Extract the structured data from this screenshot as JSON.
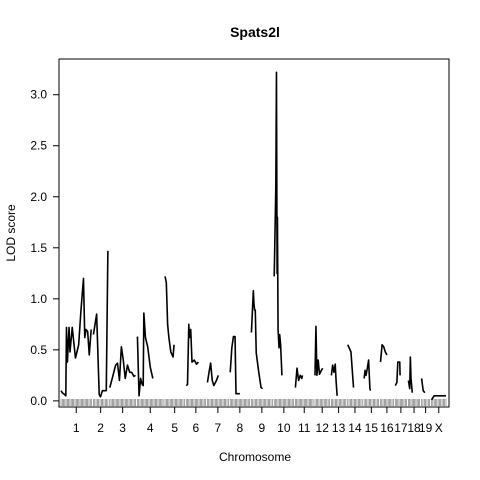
{
  "chart_data": {
    "type": "line",
    "title": "Spats2l",
    "xlabel": "Chromosome",
    "ylabel": "LOD score",
    "ylim": [
      -0.06,
      3.35
    ],
    "y_ticks": [
      0.0,
      0.5,
      1.0,
      1.5,
      2.0,
      2.5,
      3.0
    ],
    "y_tick_labels": [
      "0.0",
      "0.5",
      "1.0",
      "1.5",
      "2.0",
      "2.5",
      "3.0"
    ],
    "x_unit": "cM",
    "gap_cM": 6,
    "grid": false,
    "legend": "none",
    "line_color": "#000000",
    "chromosomes": [
      {
        "name": "1",
        "label": "1",
        "length": 95,
        "points": [
          [
            0,
            0.1
          ],
          [
            4,
            0.08
          ],
          [
            8,
            0.07
          ],
          [
            12,
            0.06
          ],
          [
            15,
            0.05
          ],
          [
            17,
            0.72
          ],
          [
            20,
            0.38
          ],
          [
            25,
            0.72
          ],
          [
            28,
            0.48
          ],
          [
            35,
            0.72
          ],
          [
            45,
            0.42
          ],
          [
            55,
            0.55
          ],
          [
            62,
            0.88
          ],
          [
            70,
            1.2
          ],
          [
            74,
            0.62
          ],
          [
            78,
            0.7
          ],
          [
            83,
            0.68
          ],
          [
            88,
            0.45
          ],
          [
            94,
            0.7
          ]
        ]
      },
      {
        "name": "2",
        "label": "2",
        "length": 45,
        "points": [
          [
            0,
            0.65
          ],
          [
            10,
            0.85
          ],
          [
            18,
            0.06
          ],
          [
            22,
            0.04
          ],
          [
            28,
            0.1
          ],
          [
            36,
            0.1
          ],
          [
            40,
            0.1
          ],
          [
            45,
            1.47
          ]
        ]
      },
      {
        "name": "3",
        "label": "3",
        "length": 80,
        "points": [
          [
            0,
            0.13
          ],
          [
            10,
            0.25
          ],
          [
            18,
            0.35
          ],
          [
            24,
            0.37
          ],
          [
            30,
            0.2
          ],
          [
            36,
            0.53
          ],
          [
            42,
            0.4
          ],
          [
            48,
            0.22
          ],
          [
            55,
            0.35
          ],
          [
            62,
            0.28
          ],
          [
            68,
            0.28
          ],
          [
            75,
            0.24
          ],
          [
            80,
            0.25
          ]
        ]
      },
      {
        "name": "4",
        "label": "4",
        "length": 80,
        "points": [
          [
            0,
            0.63
          ],
          [
            5,
            0.05
          ],
          [
            10,
            0.22
          ],
          [
            15,
            0.16
          ],
          [
            18,
            0.15
          ],
          [
            20,
            0.86
          ],
          [
            25,
            0.62
          ],
          [
            32,
            0.53
          ],
          [
            40,
            0.33
          ],
          [
            48,
            0.22
          ]
        ]
      },
      {
        "name": "5",
        "label": "5",
        "length": 60,
        "points": [
          [
            0,
            1.22
          ],
          [
            4,
            1.16
          ],
          [
            8,
            0.75
          ],
          [
            12,
            0.62
          ],
          [
            18,
            0.48
          ],
          [
            25,
            0.43
          ],
          [
            28,
            0.55
          ]
        ]
      },
      {
        "name": "6",
        "label": "6",
        "length": 60,
        "points": [
          [
            0,
            0.15
          ],
          [
            4,
            0.16
          ],
          [
            8,
            0.75
          ],
          [
            10,
            0.62
          ],
          [
            14,
            0.7
          ],
          [
            18,
            0.38
          ],
          [
            25,
            0.4
          ],
          [
            32,
            0.36
          ],
          [
            38,
            0.38
          ]
        ]
      },
      {
        "name": "7",
        "label": "7",
        "length": 65,
        "points": [
          [
            0,
            0.18
          ],
          [
            5,
            0.28
          ],
          [
            10,
            0.37
          ],
          [
            15,
            0.2
          ],
          [
            20,
            0.15
          ],
          [
            28,
            0.2
          ],
          [
            34,
            0.25
          ]
        ]
      },
      {
        "name": "8",
        "label": "8",
        "length": 60,
        "points": [
          [
            0,
            0.28
          ],
          [
            5,
            0.52
          ],
          [
            10,
            0.63
          ],
          [
            15,
            0.63
          ],
          [
            18,
            0.07
          ],
          [
            25,
            0.07
          ],
          [
            30,
            0.07
          ]
        ]
      },
      {
        "name": "9",
        "label": "9",
        "length": 65,
        "points": [
          [
            0,
            0.67
          ],
          [
            6,
            1.08
          ],
          [
            8,
            0.95
          ],
          [
            10,
            0.89
          ],
          [
            12,
            0.89
          ],
          [
            15,
            0.47
          ],
          [
            22,
            0.3
          ],
          [
            30,
            0.13
          ],
          [
            35,
            0.12
          ]
        ]
      },
      {
        "name": "10",
        "label": "10",
        "length": 60,
        "points": [
          [
            0,
            1.22
          ],
          [
            5,
            2.1
          ],
          [
            7,
            3.22
          ],
          [
            9,
            1.25
          ],
          [
            10,
            1.8
          ],
          [
            12,
            0.7
          ],
          [
            15,
            0.52
          ],
          [
            17,
            0.65
          ],
          [
            20,
            0.55
          ],
          [
            24,
            0.25
          ]
        ]
      },
      {
        "name": "11",
        "label": "11",
        "length": 55,
        "points": [
          [
            0,
            0.13
          ],
          [
            5,
            0.32
          ],
          [
            10,
            0.2
          ],
          [
            15,
            0.25
          ],
          [
            20,
            0.22
          ],
          [
            22,
            0.25
          ]
        ]
      },
      {
        "name": "12",
        "label": "12",
        "length": 45,
        "points": [
          [
            0,
            0.25
          ],
          [
            3,
            0.73
          ],
          [
            6,
            0.25
          ],
          [
            10,
            0.4
          ],
          [
            14,
            0.26
          ],
          [
            20,
            0.3
          ],
          [
            24,
            0.32
          ]
        ]
      },
      {
        "name": "13",
        "label": "13",
        "length": 45,
        "points": [
          [
            0,
            0.25
          ],
          [
            4,
            0.35
          ],
          [
            8,
            0.28
          ],
          [
            12,
            0.36
          ],
          [
            15,
            0.18
          ],
          [
            18,
            0.05
          ]
        ]
      },
      {
        "name": "14",
        "label": "14",
        "length": 45,
        "points": [
          [
            0,
            0.55
          ],
          [
            10,
            0.48
          ],
          [
            18,
            0.13
          ]
        ]
      },
      {
        "name": "15",
        "label": "15",
        "length": 45,
        "points": [
          [
            0,
            0.22
          ],
          [
            3,
            0.3
          ],
          [
            6,
            0.25
          ],
          [
            10,
            0.32
          ],
          [
            14,
            0.4
          ],
          [
            18,
            0.12
          ],
          [
            20,
            0.1
          ]
        ]
      },
      {
        "name": "16",
        "label": "16",
        "length": 40,
        "points": [
          [
            0,
            0.38
          ],
          [
            5,
            0.55
          ],
          [
            10,
            0.53
          ],
          [
            15,
            0.48
          ],
          [
            20,
            0.45
          ]
        ]
      },
      {
        "name": "17",
        "label": "17",
        "length": 35,
        "points": [
          [
            0,
            0.15
          ],
          [
            5,
            0.18
          ],
          [
            8,
            0.38
          ],
          [
            14,
            0.38
          ],
          [
            15,
            0.25
          ]
        ]
      },
      {
        "name": "18",
        "label": "18",
        "length": 35,
        "points": [
          [
            0,
            0.2
          ],
          [
            4,
            0.12
          ],
          [
            6,
            0.43
          ],
          [
            8,
            0.22
          ],
          [
            12,
            0.08
          ]
        ]
      },
      {
        "name": "19",
        "label": "19",
        "length": 25,
        "points": [
          [
            0,
            0.22
          ],
          [
            5,
            0.1
          ],
          [
            10,
            0.08
          ]
        ]
      },
      {
        "name": "X",
        "label": "X",
        "length": 45,
        "points": [
          [
            0,
            0.01
          ],
          [
            8,
            0.05
          ],
          [
            20,
            0.05
          ],
          [
            35,
            0.05
          ],
          [
            45,
            0.05
          ]
        ]
      }
    ]
  }
}
